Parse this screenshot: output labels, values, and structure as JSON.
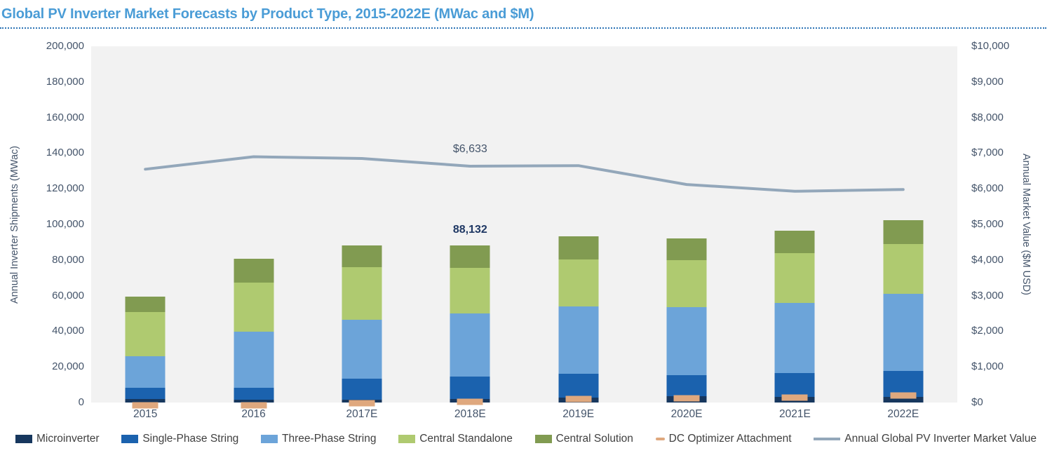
{
  "title": "Global PV Inverter Market Forecasts by Product Type, 2015-2022E (MWac and $M)",
  "colors": {
    "title": "#4A9CD6",
    "title_rule": "#2E75B6",
    "plot_background": "#F2F2F2",
    "axis_text": "#44546A",
    "legend_text": "#404040",
    "bar_total_label": "#1F3864",
    "line_label": "#44546A"
  },
  "chart_data": {
    "type": "bar",
    "subtype": "stacked-bar-with-line-combo",
    "categories": [
      "2015",
      "2016",
      "2017E",
      "2018E",
      "2019E",
      "2020E",
      "2021E",
      "2022E"
    ],
    "series": [
      {
        "name": "Microinverter",
        "type": "stacked-bar",
        "axis": "left",
        "color": "#17375E",
        "values": [
          1800,
          1500,
          1700,
          2100,
          2700,
          3600,
          3100,
          3300
        ]
      },
      {
        "name": "Single-Phase String",
        "type": "stacked-bar",
        "axis": "left",
        "color": "#1B62AE",
        "values": [
          6500,
          6900,
          11500,
          12400,
          13500,
          11800,
          13400,
          14400
        ]
      },
      {
        "name": "Three-Phase String",
        "type": "stacked-bar",
        "axis": "left",
        "color": "#6CA4D9",
        "values": [
          17500,
          31500,
          33100,
          35400,
          37600,
          38200,
          39600,
          43300
        ]
      },
      {
        "name": "Central Standalone",
        "type": "stacked-bar",
        "axis": "left",
        "color": "#AFCA70",
        "values": [
          24800,
          27400,
          29700,
          25800,
          26500,
          26500,
          27700,
          27900
        ]
      },
      {
        "name": "Central Solution",
        "type": "stacked-bar",
        "axis": "left",
        "color": "#819B51",
        "values": [
          8900,
          13500,
          12100,
          12432,
          13100,
          12200,
          12700,
          13600
        ]
      },
      {
        "name": "DC Optimizer Attachment",
        "type": "dash-marker",
        "axis": "left",
        "color": "#DFA87E",
        "values": [
          2000,
          2000,
          3300,
          4000,
          5500,
          6000,
          6300,
          7300
        ]
      },
      {
        "name": "Annual Global PV Inverter Market Value",
        "type": "line",
        "axis": "right",
        "color": "#93A7BA",
        "values": [
          6550,
          6900,
          6850,
          6633,
          6650,
          6120,
          5930,
          5980
        ]
      }
    ],
    "bar_totals": [
      59500,
      80800,
      88100,
      88132,
      93400,
      92300,
      96500,
      102500
    ],
    "left_axis": {
      "title": "Annual Inverter Shipments (MWac)",
      "min": 0,
      "max": 200000,
      "step": 20000,
      "prefix": ""
    },
    "right_axis": {
      "title": "Annual Market Value ($M USD)",
      "min": 0,
      "max": 10000,
      "step": 1000,
      "prefix": "$"
    },
    "grid": false,
    "legend_position": "bottom",
    "annotations": [
      {
        "text": "$6,633",
        "category": "2018E",
        "target": "line"
      },
      {
        "text": "88,132",
        "category": "2018E",
        "target": "bar-total"
      }
    ]
  },
  "legend": {
    "items": [
      {
        "label": "Microinverter",
        "swatch": "box",
        "color": "#17375E"
      },
      {
        "label": "Single-Phase String",
        "swatch": "box",
        "color": "#1B62AE"
      },
      {
        "label": "Three-Phase String",
        "swatch": "box",
        "color": "#6CA4D9"
      },
      {
        "label": "Central Standalone",
        "swatch": "box",
        "color": "#AFCA70"
      },
      {
        "label": "Central Solution",
        "swatch": "box",
        "color": "#819B51"
      },
      {
        "label": "DC Optimizer Attachment",
        "swatch": "dash",
        "color": "#DFA87E"
      },
      {
        "label": "Annual Global PV Inverter Market Value",
        "swatch": "line",
        "color": "#93A7BA"
      }
    ]
  }
}
